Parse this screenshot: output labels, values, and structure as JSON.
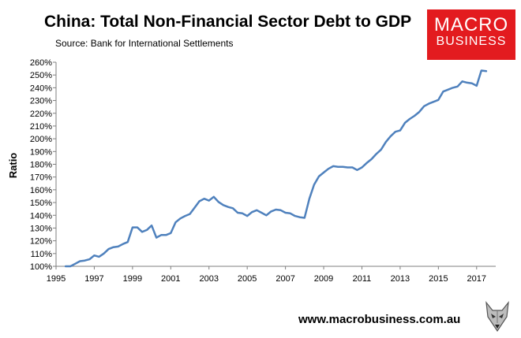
{
  "brand": {
    "logo_line1": "MACRO",
    "logo_line2": "BUSINESS",
    "website": "www.macrobusiness.com.au",
    "logo_color": "#e31b1f"
  },
  "chart_data": {
    "type": "line",
    "title": "China: Total Non-Financial Sector Debt to GDP",
    "subtitle": "Source: Bank for International Settlements",
    "xlabel": "",
    "ylabel": "Ratio",
    "xlim": [
      1995,
      2018
    ],
    "ylim": [
      100,
      260
    ],
    "xticks": [
      1995,
      1997,
      1999,
      2001,
      2003,
      2005,
      2007,
      2009,
      2011,
      2013,
      2015,
      2017
    ],
    "yticks": [
      100,
      110,
      120,
      130,
      140,
      150,
      160,
      170,
      180,
      190,
      200,
      210,
      220,
      230,
      240,
      250,
      260
    ],
    "ytick_suffix": "%",
    "grid": false,
    "line_color": "#4f81bd",
    "series": [
      {
        "x": [
          1995.5,
          1995.75,
          1996.0,
          1996.25,
          1996.5,
          1996.75,
          1997.0,
          1997.25,
          1997.5,
          1997.75,
          1998.0,
          1998.25,
          1998.5,
          1998.75,
          1999.0,
          1999.25,
          1999.5,
          1999.75,
          2000.0,
          2000.25,
          2000.5,
          2000.75,
          2001.0,
          2001.25,
          2001.5,
          2001.75,
          2002.0,
          2002.25,
          2002.5,
          2002.75,
          2003.0,
          2003.25,
          2003.5,
          2003.75,
          2004.0,
          2004.25,
          2004.5,
          2004.75,
          2005.0,
          2005.25,
          2005.5,
          2005.75,
          2006.0,
          2006.25,
          2006.5,
          2006.75,
          2007.0,
          2007.25,
          2007.5,
          2007.75,
          2008.0,
          2008.25,
          2008.5,
          2008.75,
          2009.0,
          2009.25,
          2009.5,
          2009.75,
          2010.0,
          2010.25,
          2010.5,
          2010.75,
          2011.0,
          2011.25,
          2011.5,
          2011.75,
          2012.0,
          2012.25,
          2012.5,
          2012.75,
          2013.0,
          2013.25,
          2013.5,
          2013.75,
          2014.0,
          2014.25,
          2014.5,
          2014.75,
          2015.0,
          2015.25,
          2015.5,
          2015.75,
          2016.0,
          2016.25,
          2016.5,
          2016.75,
          2017.0,
          2017.25,
          2017.5
        ],
        "y": [
          100,
          100,
          102,
          104,
          104.5,
          105.5,
          108.5,
          107.5,
          110,
          113.5,
          115,
          115.5,
          117.5,
          119,
          130.5,
          130.5,
          127,
          128.5,
          132,
          122.5,
          124.5,
          124.5,
          126,
          134.5,
          137.5,
          139.5,
          141,
          146,
          151,
          153,
          151.5,
          154.5,
          150.5,
          148,
          146.5,
          145.5,
          142,
          141.5,
          139.5,
          142.5,
          144,
          142,
          140,
          143,
          144.5,
          144,
          142,
          141.5,
          139.5,
          138.5,
          138,
          153,
          164,
          170.5,
          173.5,
          176.5,
          178.5,
          178,
          178,
          177.5,
          177.5,
          175.5,
          177.5,
          181,
          184,
          188,
          191.5,
          197.5,
          202,
          205.5,
          206.5,
          212.5,
          215.5,
          218,
          221,
          225.5,
          227.5,
          229,
          230.5,
          237,
          238.5,
          240,
          241,
          245,
          244,
          243.5,
          241.5,
          253.5,
          253
        ]
      }
    ]
  }
}
